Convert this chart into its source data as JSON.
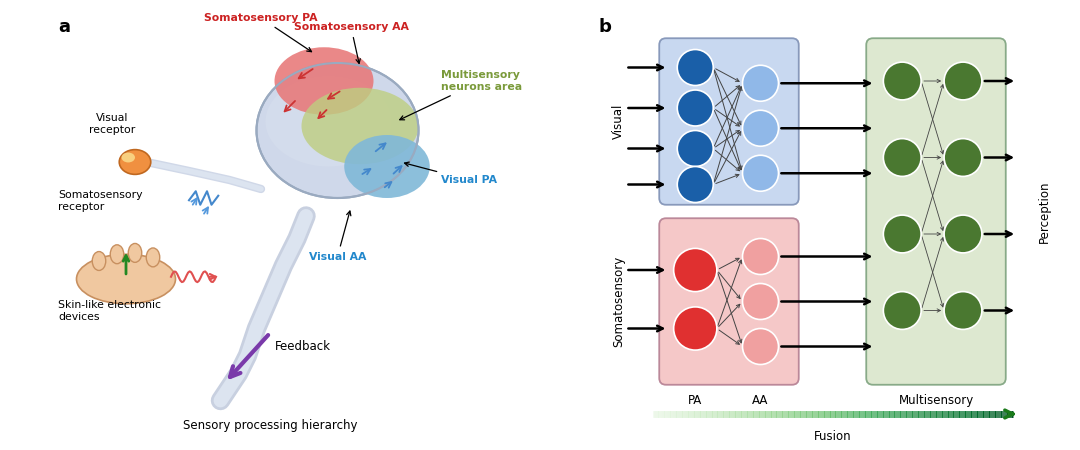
{
  "panel_a_label": "a",
  "panel_b_label": "b",
  "panel_a_subtitle": "Sensory processing hierarchy",
  "panel_b_fusion_label": "Fusion",
  "panel_b_pa_label": "PA",
  "panel_b_aa_label": "AA",
  "panel_b_multisensory_label": "Multisensory",
  "panel_b_visual_label": "Visual",
  "panel_b_somatosensory_label": "Somatosensory",
  "panel_b_perception_label": "Perception",
  "soma_pa_label": "Somatosensory PA",
  "soma_aa_label": "Somatosensory AA",
  "multi_label": "Multisensory\nneurons area",
  "visual_pa_label": "Visual PA",
  "visual_aa_label": "Visual AA",
  "visual_receptor_label": "Visual\nreceptor",
  "soma_receptor_label": "Somatosensory\nreceptor",
  "skin_label": "Skin-like electronic\ndevices",
  "feedback_label": "Feedback",
  "color_soma_pa": "#cc2222",
  "color_soma_aa": "#cc2222",
  "color_multi": "#7a9a3a",
  "color_visual_pa": "#2288cc",
  "color_visual_aa": "#2288cc",
  "color_feedback": "#7a3aaa",
  "blue_box_bg": "#c8d8f0",
  "red_box_bg": "#f5c8c8",
  "green_box_bg": "#dde8d0",
  "dark_blue_node": "#1a5fa8",
  "light_blue_node": "#90b8e8",
  "dark_red_node": "#e03030",
  "light_red_node": "#f0a0a0",
  "dark_green_node": "#4a7830",
  "bg_color": "#ffffff"
}
